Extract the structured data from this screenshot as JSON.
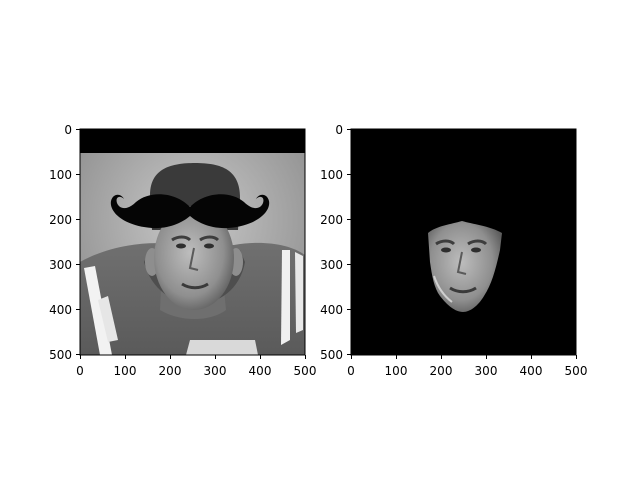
{
  "chart_data": [
    {
      "type": "image",
      "image_content": "grayscale portrait photo of a man in a striped football jersey with a large black curled mustache overlay on his forehead; top rows of the image are black",
      "xlim": [
        0,
        500
      ],
      "ylim": [
        500,
        0
      ],
      "x_ticks": [
        0,
        100,
        200,
        300,
        400,
        500
      ],
      "y_ticks": [
        0,
        100,
        200,
        300,
        400,
        500
      ],
      "xlabel": "",
      "ylabel": "",
      "title": ""
    },
    {
      "type": "image",
      "image_content": "black background with only the man's face region visible in grayscale",
      "xlim": [
        0,
        500
      ],
      "ylim": [
        500,
        0
      ],
      "x_ticks": [
        0,
        100,
        200,
        300,
        400,
        500
      ],
      "y_ticks": [
        0,
        100,
        200,
        300,
        400,
        500
      ],
      "xlabel": "",
      "ylabel": "",
      "title": ""
    }
  ]
}
